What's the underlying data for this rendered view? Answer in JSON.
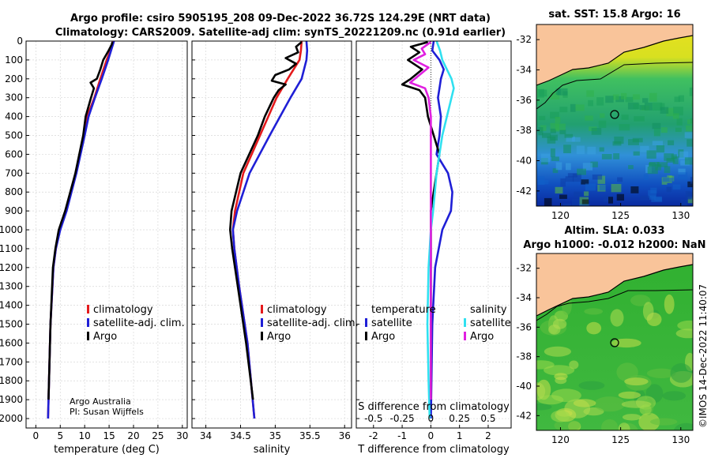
{
  "title": {
    "line1": "Argo profile: csiro 5905195_208 09-Dec-2022 36.72S 124.29E (NRT data)",
    "line2": "Climatology: CARS2009. Satellite-adj clim: synTS_20221209.nc (0.91d earlier)"
  },
  "colors": {
    "climatology": "#e41a1c",
    "satellite": "#1f1fd6",
    "argo": "#000000",
    "sat_cyan": "#30e0f0",
    "argo_mag": "#e020e0",
    "land": "#f9c49a"
  },
  "depth_axis": {
    "ylim": [
      0,
      2050
    ],
    "ticks": [
      0,
      100,
      200,
      300,
      400,
      500,
      600,
      700,
      800,
      900,
      1000,
      1100,
      1200,
      1300,
      1400,
      1500,
      1600,
      1700,
      1800,
      1900,
      2000
    ],
    "tick_labels": [
      "0",
      "100",
      "200",
      "300",
      "400",
      "500",
      "600",
      "700",
      "800",
      "900",
      "1000",
      "1100",
      "1200",
      "1300",
      "1400",
      "1500",
      "1600",
      "1700",
      "1800",
      "1900",
      "2000"
    ]
  },
  "chart_data": [
    {
      "type": "line",
      "name": "temperature",
      "xlabel": "temperature (deg C)",
      "xlim": [
        -2,
        31
      ],
      "xticks": [
        0,
        5,
        10,
        15,
        20,
        25,
        30
      ],
      "xtick_labels": [
        "0",
        "5",
        "10",
        "15",
        "20",
        "25",
        "30"
      ],
      "legend": [
        "climatology",
        "satellite-adj. clim.",
        "Argo"
      ],
      "series": [
        {
          "name": "climatology",
          "depth": [
            0,
            50,
            100,
            200,
            300,
            400,
            500,
            700,
            900,
            1000,
            1100,
            1200,
            1500,
            2000
          ],
          "values": [
            15.8,
            15.3,
            14.5,
            13.2,
            12.0,
            10.5,
            9.9,
            8.2,
            6.2,
            4.9,
            4.1,
            3.6,
            3.0,
            2.5
          ]
        },
        {
          "name": "satellite-adj. clim.",
          "depth": [
            0,
            50,
            100,
            200,
            300,
            400,
            500,
            700,
            900,
            1000,
            1100,
            1200,
            1500,
            2000
          ],
          "values": [
            16.0,
            15.4,
            14.8,
            13.5,
            12.1,
            10.8,
            10.0,
            8.3,
            6.3,
            5.0,
            4.1,
            3.6,
            3.0,
            2.5
          ]
        },
        {
          "name": "Argo",
          "depth": [
            5,
            20,
            50,
            100,
            150,
            200,
            220,
            250,
            300,
            400,
            500,
            700,
            900,
            1000,
            1100,
            1200,
            1500,
            1900
          ],
          "values": [
            15.7,
            15.5,
            14.9,
            13.8,
            13.2,
            12.5,
            11.2,
            11.9,
            11.3,
            10.2,
            9.7,
            8.1,
            6.0,
            4.7,
            4.0,
            3.5,
            3.0,
            2.6
          ]
        }
      ]
    },
    {
      "type": "line",
      "name": "salinity",
      "xlabel": "salinity",
      "xlim": [
        33.8,
        36.1
      ],
      "xticks": [
        34,
        34.5,
        35,
        35.5,
        36
      ],
      "xtick_labels": [
        "34",
        "34.5",
        "35",
        "35.5",
        "36"
      ],
      "legend": [
        "climatology",
        "satellite-adj. clim.",
        "Argo"
      ],
      "series": [
        {
          "name": "climatology",
          "depth": [
            0,
            50,
            100,
            200,
            300,
            400,
            500,
            700,
            900,
            1000,
            1100,
            1300,
            1600,
            2000
          ],
          "values": [
            35.38,
            35.37,
            35.35,
            35.18,
            35.02,
            34.9,
            34.78,
            34.54,
            34.42,
            34.39,
            34.41,
            34.48,
            34.6,
            34.7
          ]
        },
        {
          "name": "satellite-adj. clim.",
          "depth": [
            0,
            50,
            100,
            200,
            300,
            400,
            500,
            700,
            900,
            1000,
            1100,
            1300,
            1600,
            2000
          ],
          "values": [
            35.45,
            35.46,
            35.45,
            35.38,
            35.22,
            35.07,
            34.92,
            34.63,
            34.45,
            34.39,
            34.41,
            34.48,
            34.6,
            34.7
          ]
        },
        {
          "name": "Argo",
          "depth": [
            5,
            30,
            60,
            90,
            120,
            150,
            180,
            210,
            230,
            260,
            300,
            400,
            500,
            700,
            900,
            1000,
            1100,
            1300,
            1600,
            1900
          ],
          "values": [
            35.38,
            35.3,
            35.33,
            35.15,
            35.3,
            35.2,
            35.0,
            34.95,
            35.15,
            35.05,
            34.98,
            34.85,
            34.75,
            34.5,
            34.37,
            34.35,
            34.38,
            34.46,
            34.58,
            34.68
          ]
        }
      ]
    },
    {
      "type": "line",
      "name": "difference",
      "xlabel": "T difference from climatology",
      "xlim": [
        -2.6,
        2.8
      ],
      "xticks": [
        -2,
        -1,
        0,
        1,
        2
      ],
      "xtick_labels": [
        "-2",
        "-1",
        "0",
        "1",
        "2"
      ],
      "top_label": "S difference from climatology",
      "top_ticks": [
        -0.5,
        -0.25,
        0,
        0.25,
        0.5
      ],
      "top_tick_labels": [
        "-0.5",
        "-0.25",
        "0",
        "0.25",
        "0.5"
      ],
      "legend_left_title": "temperature",
      "legend_right_title": "salinity",
      "legend_left": [
        "satellite",
        "Argo"
      ],
      "legend_right": [
        "satellite",
        "Argo"
      ],
      "series": [
        {
          "name": "T satellite",
          "depth": [
            0,
            50,
            100,
            150,
            200,
            250,
            300,
            400,
            500,
            600,
            700,
            800,
            900,
            1000,
            1200,
            1500,
            2000
          ],
          "values": [
            0.1,
            0.05,
            0.3,
            0.45,
            0.35,
            0.3,
            0.25,
            0.35,
            0.3,
            0.2,
            0.6,
            0.75,
            0.7,
            0.4,
            0.15,
            0.05,
            0
          ]
        },
        {
          "name": "T Argo",
          "depth": [
            5,
            30,
            60,
            100,
            150,
            200,
            230,
            260,
            300,
            400,
            500,
            600,
            700,
            800,
            900,
            1000,
            1200,
            1500,
            1900
          ],
          "values": [
            -0.1,
            -0.7,
            -0.4,
            -0.8,
            -0.3,
            -0.7,
            -1.0,
            -0.4,
            -0.2,
            -0.1,
            0.1,
            0.3,
            0.2,
            0.1,
            0,
            0,
            0,
            0,
            0
          ]
        },
        {
          "name": "S satellite",
          "depth": [
            0,
            50,
            100,
            150,
            200,
            250,
            300,
            350,
            400,
            500,
            700,
            900,
            1000,
            1200,
            1500,
            1800,
            2000
          ],
          "values": [
            0.05,
            0.08,
            0.1,
            0.14,
            0.18,
            0.2,
            0.18,
            0.16,
            0.14,
            0.1,
            0.05,
            0.02,
            0,
            -0.02,
            -0.03,
            -0.02,
            -0.01
          ]
        },
        {
          "name": "S Argo",
          "depth": [
            5,
            40,
            70,
            100,
            140,
            180,
            220,
            250,
            300,
            400,
            500,
            700,
            900,
            1000,
            1200,
            1500,
            1900
          ],
          "values": [
            0,
            -0.08,
            -0.05,
            -0.15,
            -0.02,
            -0.1,
            -0.18,
            -0.05,
            -0.02,
            0,
            0,
            0,
            0,
            0,
            0,
            0,
            0
          ]
        }
      ]
    },
    {
      "type": "heatmap",
      "name": "sat-sst-map",
      "title": "sat. SST: 15.8 Argo: 16",
      "xlim": [
        118,
        131
      ],
      "ylim": [
        -43,
        -31
      ],
      "xticks": [
        120,
        125,
        130
      ],
      "yticks": [
        -42,
        -40,
        -38,
        -36,
        -34,
        -32
      ],
      "marker": {
        "lon": 124.29,
        "lat": -36.72
      }
    },
    {
      "type": "heatmap",
      "name": "altim-sla-map",
      "title_line1": "Altim. SLA: 0.033",
      "title_line2": "Argo h1000: -0.012 h2000: NaN",
      "xlim": [
        118,
        131
      ],
      "ylim": [
        -43,
        -31
      ],
      "xticks": [
        120,
        125,
        130
      ],
      "yticks": [
        -42,
        -40,
        -38,
        -36,
        -34,
        -32
      ],
      "marker": {
        "lon": 124.29,
        "lat": -36.72
      }
    }
  ],
  "annotations": {
    "org": "Argo Australia",
    "pi": "PI: Susan Wijffels",
    "watermark": "©IMOS 14-Dec-2022 11:40:07"
  }
}
